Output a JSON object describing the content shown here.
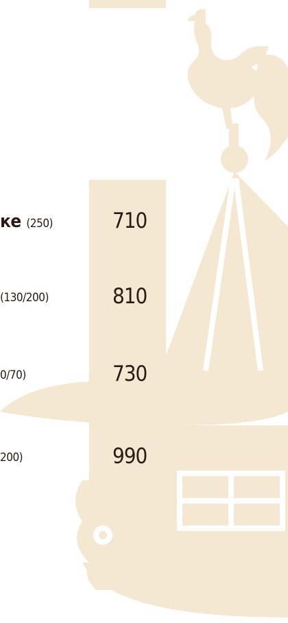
{
  "menu": {
    "items": [
      {
        "name": "ке",
        "portion": "(250)",
        "price": "710"
      },
      {
        "portion": "(130/200)",
        "price": "810"
      },
      {
        "portion": "0/70)",
        "price": "730"
      },
      {
        "portion": "200)",
        "price": "990"
      }
    ]
  }
}
